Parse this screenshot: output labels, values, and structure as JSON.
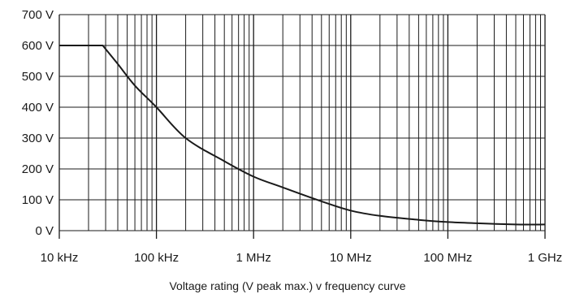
{
  "chart_data": {
    "type": "line",
    "title": "",
    "xlabel": "Voltage rating (V peak max.) v frequency curve",
    "ylabel": "",
    "x_scale": "log",
    "x_unit": "Hz",
    "xlim": [
      10000,
      1000000000
    ],
    "ylim": [
      0,
      700
    ],
    "grid": true,
    "x_ticks": [
      {
        "value": 10000,
        "label": "10 kHz"
      },
      {
        "value": 100000,
        "label": "100 kHz"
      },
      {
        "value": 1000000,
        "label": "1 MHz"
      },
      {
        "value": 10000000,
        "label": "10 MHz"
      },
      {
        "value": 100000000,
        "label": "100 MHz"
      },
      {
        "value": 1000000000,
        "label": "1 GHz"
      }
    ],
    "y_ticks": [
      {
        "value": 0,
        "label": "0 V"
      },
      {
        "value": 100,
        "label": "100 V"
      },
      {
        "value": 200,
        "label": "200 V"
      },
      {
        "value": 300,
        "label": "300 V"
      },
      {
        "value": 400,
        "label": "400 V"
      },
      {
        "value": 500,
        "label": "500 V"
      },
      {
        "value": 600,
        "label": "600 V"
      },
      {
        "value": 700,
        "label": "700 V"
      }
    ],
    "series": [
      {
        "color": "#1a1a1a",
        "points": [
          [
            10000,
            600
          ],
          [
            28000,
            600
          ],
          [
            40000,
            540
          ],
          [
            60000,
            470
          ],
          [
            100000,
            400
          ],
          [
            200000,
            300
          ],
          [
            500000,
            225
          ],
          [
            1000000,
            175
          ],
          [
            2000000,
            140
          ],
          [
            5000000,
            95
          ],
          [
            10000000,
            65
          ],
          [
            20000000,
            48
          ],
          [
            50000000,
            35
          ],
          [
            100000000,
            28
          ],
          [
            200000000,
            24
          ],
          [
            500000000,
            20
          ],
          [
            1000000000,
            20
          ]
        ]
      }
    ]
  }
}
